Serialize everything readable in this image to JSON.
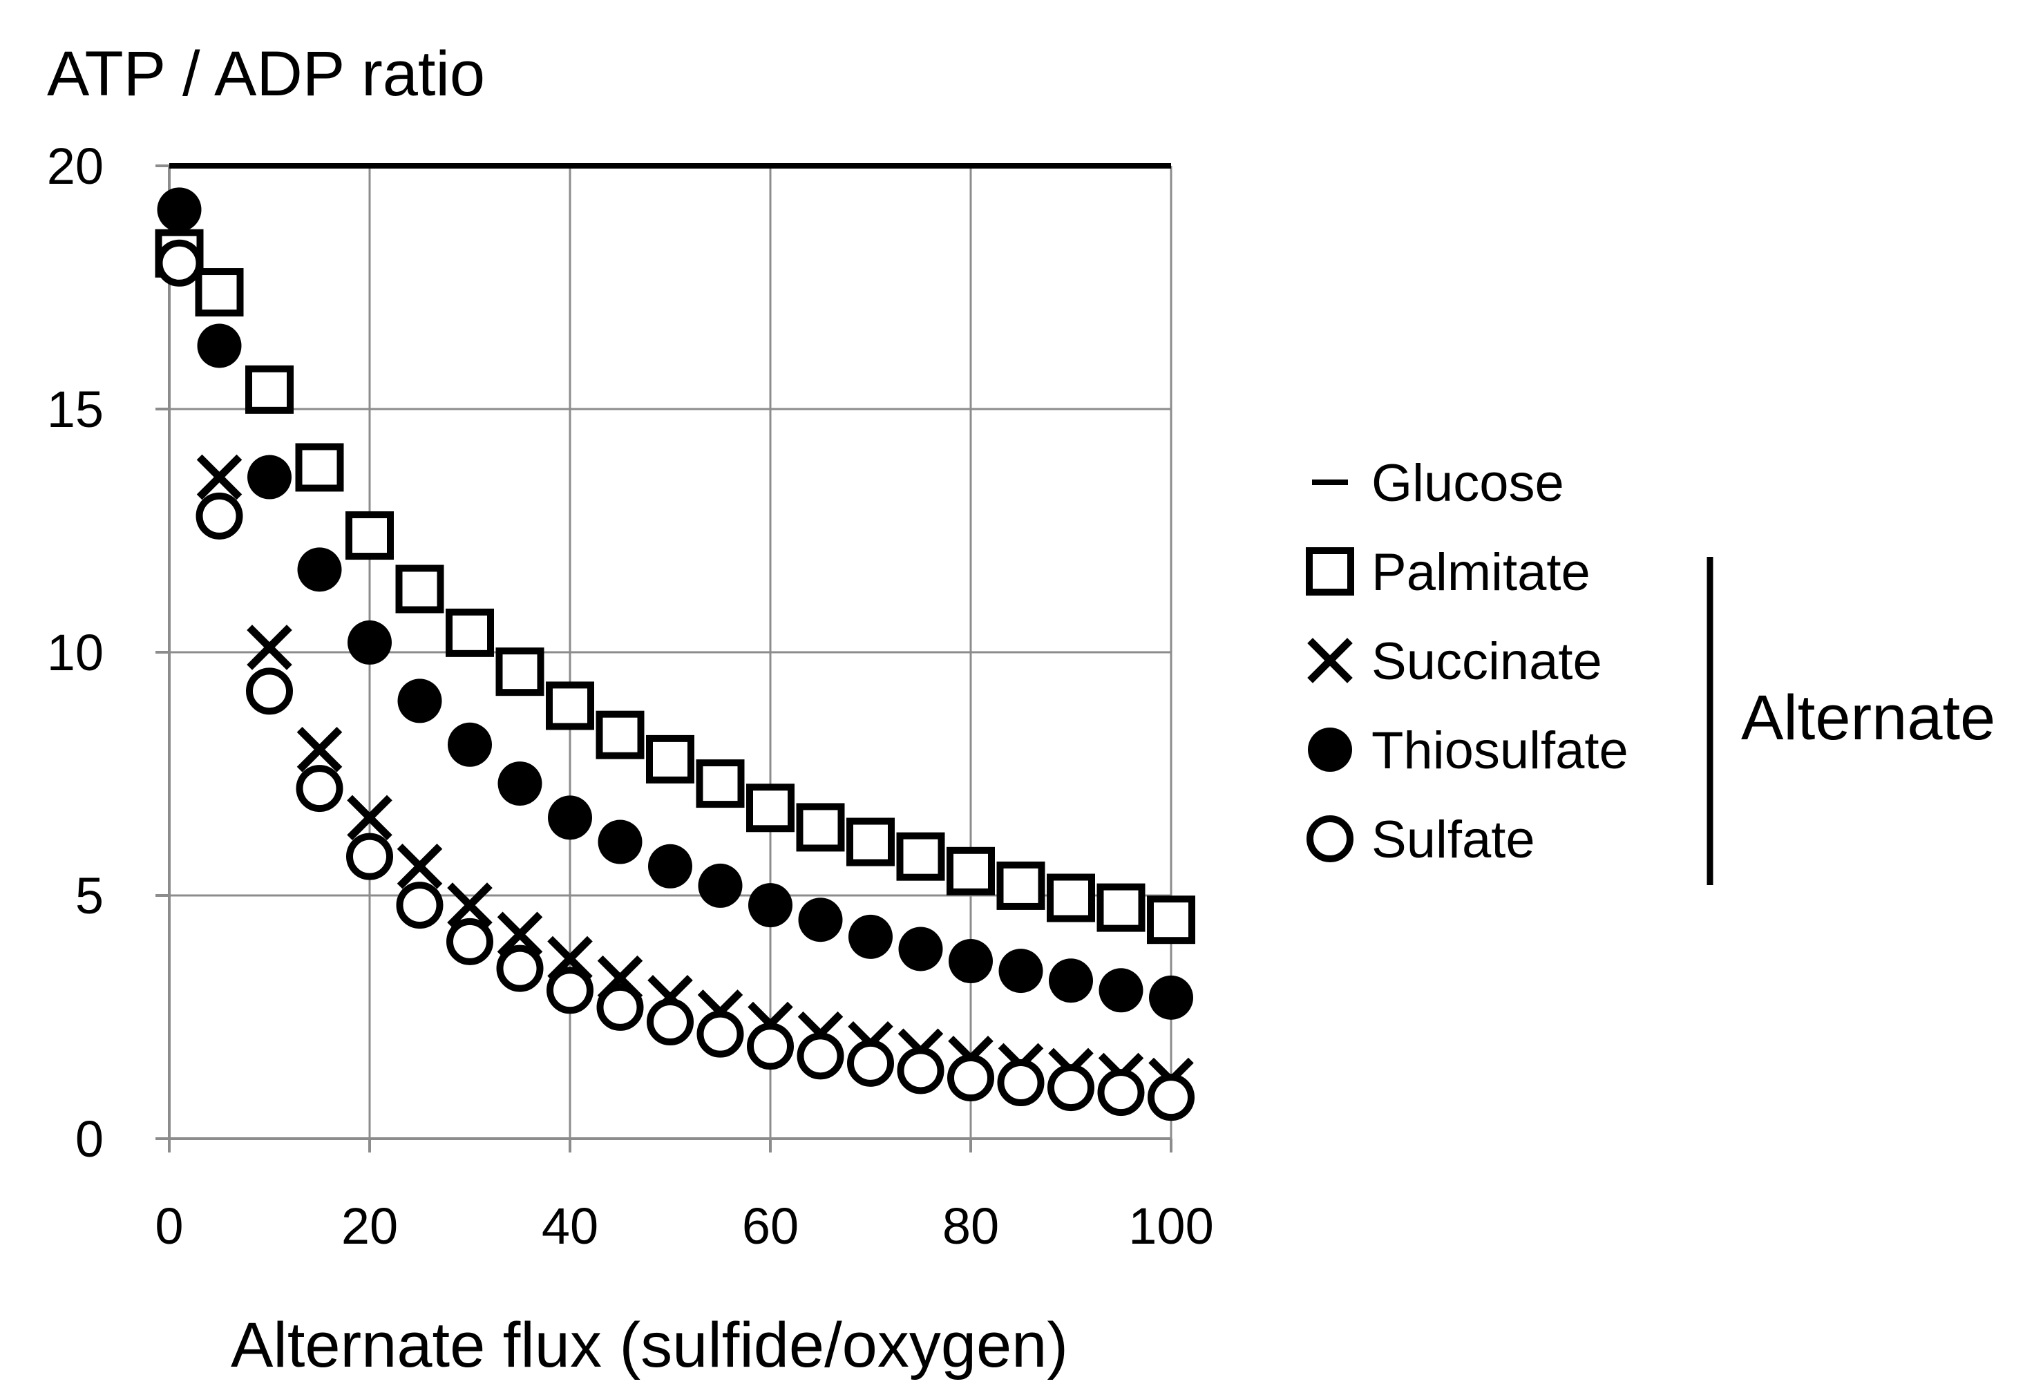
{
  "chart_data": {
    "type": "scatter",
    "title": "",
    "ylabel": "ATP / ADP ratio",
    "xlabel": "Alternate flux (sulfide/oxygen)",
    "xlim": [
      0,
      100
    ],
    "ylim": [
      0,
      20
    ],
    "xticks": [
      0,
      20,
      40,
      60,
      80,
      100
    ],
    "yticks": [
      0,
      5,
      10,
      15,
      20
    ],
    "grid": true,
    "legend_position": "right",
    "legend_group_label": "Alternate",
    "series": [
      {
        "name": "Glucose",
        "marker": "line",
        "x": [
          0,
          100
        ],
        "y": [
          20,
          20
        ]
      },
      {
        "name": "Palmitate",
        "marker": "open-square",
        "x": [
          1,
          5,
          10,
          15,
          20,
          25,
          30,
          35,
          40,
          45,
          50,
          55,
          60,
          65,
          70,
          75,
          80,
          85,
          90,
          95,
          100
        ],
        "y": [
          18.2,
          17.4,
          15.4,
          13.8,
          12.4,
          11.3,
          10.4,
          9.6,
          8.9,
          8.3,
          7.8,
          7.3,
          6.8,
          6.4,
          6.1,
          5.8,
          5.5,
          5.2,
          4.95,
          4.75,
          4.5
        ]
      },
      {
        "name": "Succinate",
        "marker": "x",
        "x": [
          5,
          10,
          15,
          20,
          25,
          30,
          35,
          40,
          45,
          50,
          55,
          60,
          65,
          70,
          75,
          80,
          85,
          90,
          95,
          100
        ],
        "y": [
          13.6,
          10.1,
          8.0,
          6.6,
          5.6,
          4.8,
          4.2,
          3.7,
          3.3,
          2.9,
          2.6,
          2.35,
          2.15,
          1.95,
          1.8,
          1.65,
          1.5,
          1.4,
          1.3,
          1.2
        ]
      },
      {
        "name": "Thiosulfate",
        "marker": "filled-circle",
        "x": [
          1,
          5,
          10,
          15,
          20,
          25,
          30,
          35,
          40,
          45,
          50,
          55,
          60,
          65,
          70,
          75,
          80,
          85,
          90,
          95,
          100
        ],
        "y": [
          19.1,
          16.3,
          13.6,
          11.7,
          10.2,
          9.0,
          8.1,
          7.3,
          6.6,
          6.1,
          5.6,
          5.2,
          4.8,
          4.5,
          4.15,
          3.9,
          3.65,
          3.45,
          3.25,
          3.05,
          2.9
        ]
      },
      {
        "name": "Sulfate",
        "marker": "open-circle",
        "x": [
          1,
          5,
          10,
          15,
          20,
          25,
          30,
          35,
          40,
          45,
          50,
          55,
          60,
          65,
          70,
          75,
          80,
          85,
          90,
          95,
          100
        ],
        "y": [
          18.0,
          12.8,
          9.2,
          7.2,
          5.8,
          4.8,
          4.05,
          3.5,
          3.05,
          2.7,
          2.4,
          2.15,
          1.9,
          1.7,
          1.55,
          1.4,
          1.25,
          1.15,
          1.05,
          0.95,
          0.85
        ]
      }
    ]
  }
}
